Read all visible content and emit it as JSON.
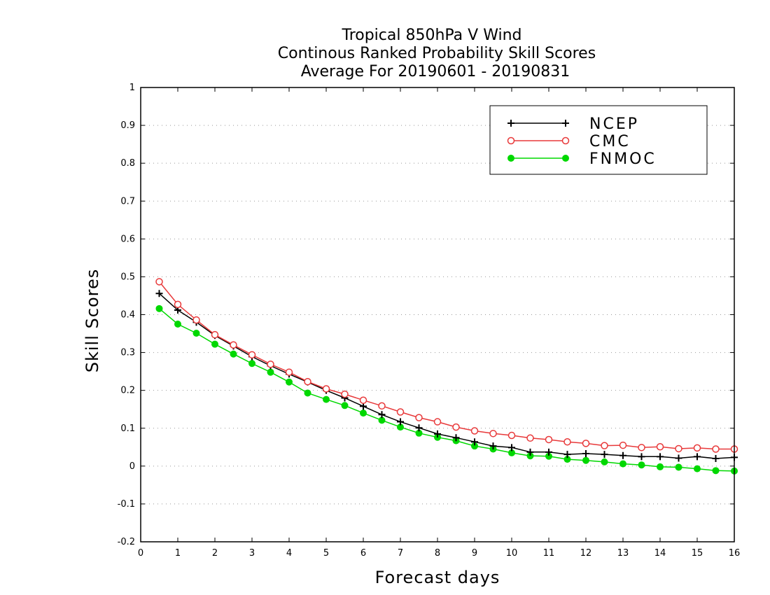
{
  "chart_data": {
    "type": "line",
    "title": [
      "Tropical 850hPa V Wind",
      "Continous Ranked Probability Skill Scores",
      "Average For 20190601 - 20190831"
    ],
    "xlabel": "Forecast days",
    "ylabel": "Skill Scores",
    "xlim": [
      0,
      16
    ],
    "ylim": [
      -0.2,
      1
    ],
    "xticks": [
      "0",
      "1",
      "2",
      "3",
      "4",
      "5",
      "6",
      "7",
      "8",
      "9",
      "10",
      "11",
      "12",
      "13",
      "14",
      "15",
      "16"
    ],
    "yticks": [
      "-0.2",
      "-0.1",
      "0",
      "0.1",
      "0.2",
      "0.3",
      "0.4",
      "0.5",
      "0.6",
      "0.7",
      "0.8",
      "0.9",
      "1"
    ],
    "grid": "horizontal dotted",
    "legend_position": "top-right",
    "x": [
      0.5,
      1,
      1.5,
      2,
      2.5,
      3,
      3.5,
      4,
      4.5,
      5,
      5.5,
      6,
      6.5,
      7,
      7.5,
      8,
      8.5,
      9,
      9.5,
      10,
      10.5,
      11,
      11.5,
      12,
      12.5,
      13,
      13.5,
      14,
      14.5,
      15,
      15.5,
      16
    ],
    "series": [
      {
        "name": "NCEP",
        "color": "#000000",
        "marker": "plus",
        "values": [
          0.456,
          0.412,
          0.38,
          0.345,
          0.317,
          0.289,
          0.265,
          0.243,
          0.222,
          0.2,
          0.18,
          0.158,
          0.136,
          0.117,
          0.101,
          0.085,
          0.075,
          0.064,
          0.053,
          0.049,
          0.037,
          0.037,
          0.031,
          0.033,
          0.031,
          0.028,
          0.025,
          0.025,
          0.021,
          0.025,
          0.02,
          0.023
        ]
      },
      {
        "name": "CMC",
        "color": "#e8393a",
        "marker": "open-circle",
        "values": [
          0.487,
          0.427,
          0.386,
          0.347,
          0.32,
          0.294,
          0.269,
          0.248,
          0.223,
          0.204,
          0.19,
          0.174,
          0.159,
          0.143,
          0.128,
          0.117,
          0.103,
          0.093,
          0.086,
          0.081,
          0.074,
          0.07,
          0.064,
          0.06,
          0.054,
          0.055,
          0.049,
          0.051,
          0.046,
          0.048,
          0.045,
          0.045
        ]
      },
      {
        "name": "FNMOC",
        "color": "#00d800",
        "marker": "filled-circle",
        "values": [
          0.416,
          0.375,
          0.351,
          0.322,
          0.296,
          0.271,
          0.248,
          0.222,
          0.193,
          0.176,
          0.16,
          0.14,
          0.121,
          0.103,
          0.087,
          0.076,
          0.067,
          0.053,
          0.045,
          0.035,
          0.027,
          0.026,
          0.018,
          0.015,
          0.011,
          0.006,
          0.003,
          -0.002,
          -0.003,
          -0.007,
          -0.012,
          -0.013
        ]
      }
    ]
  }
}
